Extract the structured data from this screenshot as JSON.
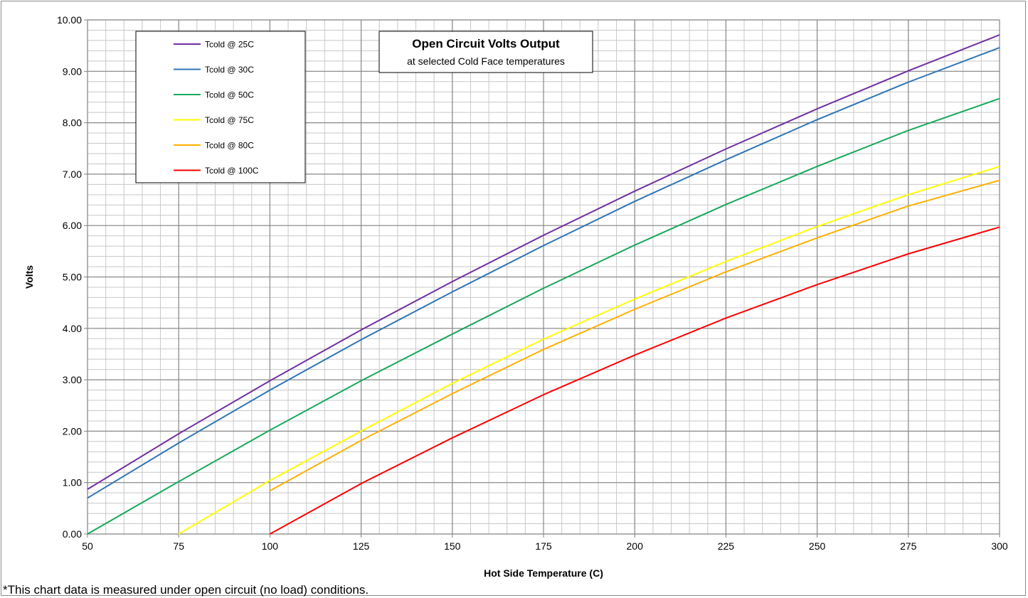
{
  "chart_data": {
    "type": "line",
    "title": "Open Circuit Volts Output",
    "subtitle": "at selected Cold Face temperatures",
    "xlabel": "Hot Side Temperature (C)",
    "ylabel": "Volts",
    "xlim": [
      50,
      300
    ],
    "ylim": [
      0,
      10
    ],
    "x_ticks": [
      "50",
      "75",
      "100",
      "125",
      "150",
      "175",
      "200",
      "225",
      "250",
      "275",
      "300"
    ],
    "y_ticks": [
      "0.00",
      "1.00",
      "2.00",
      "3.00",
      "4.00",
      "5.00",
      "6.00",
      "7.00",
      "8.00",
      "9.00",
      "10.00"
    ],
    "grid": true,
    "legend_position": "top-left",
    "series": [
      {
        "name": "Tcold @ 25C",
        "color": "#7030a0",
        "x": [
          50,
          75,
          100,
          125,
          150,
          175,
          200,
          225,
          250,
          275,
          300
        ],
        "y": [
          0.87,
          1.95,
          2.98,
          3.97,
          4.91,
          5.81,
          6.67,
          7.49,
          8.27,
          9.01,
          9.71
        ]
      },
      {
        "name": "Tcold @ 30C",
        "color": "#2e75b6",
        "x": [
          50,
          75,
          100,
          125,
          150,
          175,
          200,
          225,
          250,
          275,
          300
        ],
        "y": [
          0.7,
          1.77,
          2.8,
          3.78,
          4.71,
          5.61,
          6.47,
          7.28,
          8.06,
          8.79,
          9.46
        ]
      },
      {
        "name": "Tcold @ 50C",
        "color": "#18a95a",
        "x": [
          50,
          75,
          100,
          125,
          150,
          175,
          200,
          225,
          250,
          275,
          300
        ],
        "y": [
          0.0,
          1.02,
          2.02,
          2.98,
          3.89,
          4.78,
          5.62,
          6.41,
          7.15,
          7.85,
          8.47
        ]
      },
      {
        "name": "Tcold @ 75C",
        "color": "#ffff00",
        "x": [
          75,
          100,
          125,
          150,
          175,
          200,
          225,
          250,
          275,
          300
        ],
        "y": [
          0.0,
          1.04,
          2.0,
          2.93,
          3.79,
          4.57,
          5.3,
          5.98,
          6.6,
          7.15
        ]
      },
      {
        "name": "Tcold @ 80C",
        "color": "#ffb000",
        "x": [
          100,
          125,
          150,
          175,
          200,
          225,
          250,
          275,
          300
        ],
        "y": [
          0.84,
          1.82,
          2.73,
          3.59,
          4.37,
          5.1,
          5.76,
          6.38,
          6.88
        ]
      },
      {
        "name": "Tcold @ 100C",
        "color": "#ff0000",
        "x": [
          100,
          125,
          150,
          175,
          200,
          225,
          250,
          275,
          300
        ],
        "y": [
          0.0,
          0.98,
          1.87,
          2.71,
          3.48,
          4.2,
          4.85,
          5.45,
          5.97
        ]
      }
    ],
    "footnote": "*This chart data is measured under open circuit (no load) conditions."
  }
}
